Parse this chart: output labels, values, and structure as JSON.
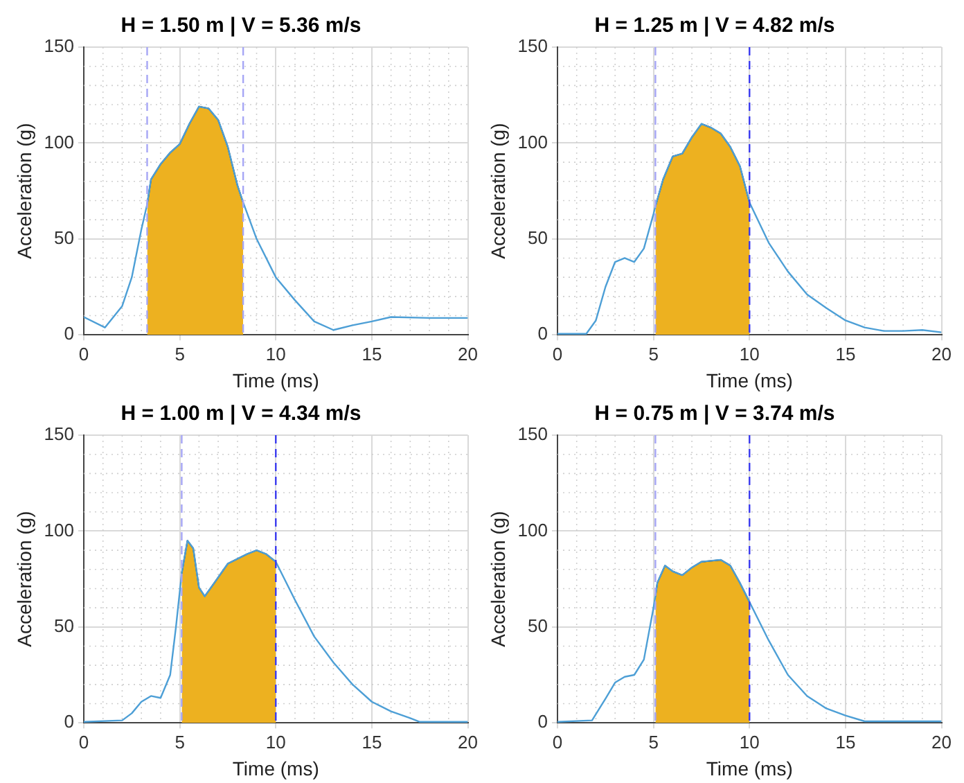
{
  "chart_data": [
    {
      "type": "line",
      "title": "H = 1.50 m | V = 5.36 m/s",
      "xlabel": "Time (ms)",
      "ylabel": "Acceleration (g)",
      "xlim": [
        0,
        20
      ],
      "xticks": [
        0,
        5,
        10,
        15,
        20
      ],
      "ylim": [
        0,
        150
      ],
      "yticks": [
        0,
        50,
        100,
        150
      ],
      "grid": true,
      "series": [
        {
          "type": "line",
          "color": "#4d9fd6",
          "x": [
            0,
            1.1,
            2,
            2.5,
            3,
            3.3,
            3.5,
            4,
            4.5,
            5,
            5.5,
            6,
            6.5,
            7,
            7.5,
            8,
            8.3,
            9,
            10,
            11,
            12,
            13,
            14,
            15,
            16,
            18,
            20
          ],
          "values": [
            9.3,
            3.8,
            15,
            30,
            55,
            68,
            81,
            89,
            95,
            99.5,
            110,
            119,
            118,
            112,
            98,
            78,
            69,
            50,
            30,
            18,
            7,
            2.5,
            5,
            7,
            9.3,
            8.8,
            8.8
          ]
        },
        {
          "type": "area",
          "color": "#edb120",
          "x": [
            3.3,
            3.5,
            4,
            4.5,
            5,
            5.5,
            6,
            6.5,
            7,
            7.5,
            8,
            8.3
          ],
          "values": [
            68,
            81,
            89,
            95,
            99.5,
            110,
            119,
            118,
            112,
            98,
            78,
            69
          ]
        }
      ],
      "ref_lines": [
        {
          "axis": "x",
          "value": 3.3,
          "color": "#a6a6f5",
          "line_style": "dashed"
        },
        {
          "axis": "x",
          "value": 8.3,
          "color": "#a6a6f5",
          "line_style": "dashed"
        }
      ]
    },
    {
      "type": "line",
      "title": "H = 1.25 m | V = 4.82 m/s",
      "xlabel": "Time (ms)",
      "ylabel": "Acceleration (g)",
      "xlim": [
        0,
        20
      ],
      "xticks": [
        0,
        5,
        10,
        15,
        20
      ],
      "ylim": [
        0,
        150
      ],
      "yticks": [
        0,
        50,
        100,
        150
      ],
      "grid": true,
      "series": [
        {
          "type": "line",
          "color": "#4d9fd6",
          "x": [
            0,
            1.5,
            2,
            2.5,
            3,
            3.5,
            4,
            4.5,
            5,
            5.1,
            5.5,
            6,
            6.5,
            7,
            7.5,
            8,
            8.5,
            9,
            9.5,
            10,
            11,
            12,
            13,
            14,
            15,
            16,
            17,
            18,
            19,
            20
          ],
          "values": [
            0.5,
            0.5,
            7.5,
            25,
            38,
            40,
            38,
            45,
            63,
            67,
            81,
            93,
            94.5,
            103,
            110,
            108,
            105,
            98,
            88,
            69,
            48,
            33,
            21,
            14,
            7.5,
            3.8,
            2,
            2,
            2.5,
            1.3
          ]
        },
        {
          "type": "area",
          "color": "#edb120",
          "x": [
            5.1,
            5.5,
            6,
            6.5,
            7,
            7.5,
            8,
            8.5,
            9,
            9.5,
            10
          ],
          "values": [
            67,
            81,
            93,
            94.5,
            103,
            110,
            108,
            105,
            98,
            88,
            69
          ]
        }
      ],
      "ref_lines": [
        {
          "axis": "x",
          "value": 5.1,
          "color": "#a6a6f5",
          "line_style": "dashed"
        },
        {
          "axis": "x",
          "value": 10,
          "color": "#3a3af0",
          "line_style": "dashed"
        }
      ]
    },
    {
      "type": "line",
      "title": "H = 1.00 m | V = 4.34 m/s",
      "xlabel": "Time (ms)",
      "ylabel": "Acceleration (g)",
      "xlim": [
        0,
        20
      ],
      "xticks": [
        0,
        5,
        10,
        15,
        20
      ],
      "ylim": [
        0,
        150
      ],
      "yticks": [
        0,
        50,
        100,
        150
      ],
      "grid": true,
      "series": [
        {
          "type": "line",
          "color": "#4d9fd6",
          "x": [
            0,
            2,
            2.5,
            3,
            3.5,
            4,
            4.5,
            4.8,
            5.1,
            5.4,
            5.7,
            6,
            6.3,
            6.8,
            7.5,
            8.5,
            9,
            9.5,
            10,
            11,
            12,
            13,
            14,
            15,
            16,
            17,
            17.5,
            20
          ],
          "values": [
            0.5,
            1.3,
            5,
            11,
            14,
            13,
            25,
            50,
            78,
            95,
            91,
            70.5,
            66,
            73,
            83,
            88,
            90,
            88,
            84,
            64,
            45,
            31.5,
            20,
            11,
            6,
            2.5,
            0.5,
            0.5
          ]
        },
        {
          "type": "area",
          "color": "#edb120",
          "x": [
            5.1,
            5.4,
            5.7,
            6,
            6.3,
            6.8,
            7.5,
            8.5,
            9,
            9.5,
            10
          ],
          "values": [
            78,
            95,
            91,
            70.5,
            66,
            73,
            83,
            88,
            90,
            88,
            84
          ]
        }
      ],
      "ref_lines": [
        {
          "axis": "x",
          "value": 5.1,
          "color": "#a6a6f5",
          "line_style": "dashed"
        },
        {
          "axis": "x",
          "value": 10,
          "color": "#3a3af0",
          "line_style": "dashed"
        }
      ]
    },
    {
      "type": "line",
      "title": "H = 0.75 m | V = 3.74 m/s",
      "xlabel": "Time (ms)",
      "ylabel": "Acceleration (g)",
      "xlim": [
        0,
        20
      ],
      "xticks": [
        0,
        5,
        10,
        15,
        20
      ],
      "ylim": [
        0,
        150
      ],
      "yticks": [
        0,
        50,
        100,
        150
      ],
      "grid": true,
      "series": [
        {
          "type": "line",
          "color": "#4d9fd6",
          "x": [
            0,
            1.8,
            2.5,
            3,
            3.5,
            4,
            4.5,
            5,
            5.1,
            5.2,
            5.6,
            6,
            6.5,
            7,
            7.5,
            8.5,
            9,
            9.5,
            10,
            11,
            12,
            13,
            14,
            15,
            16,
            20
          ],
          "values": [
            0.5,
            1.3,
            12.6,
            21,
            24,
            25,
            33,
            60,
            66,
            73,
            82,
            79,
            77,
            81,
            84,
            85,
            82,
            73,
            63,
            43,
            25,
            14,
            7.5,
            3.8,
            0.8,
            0.8
          ]
        },
        {
          "type": "area",
          "color": "#edb120",
          "x": [
            5.1,
            5.2,
            5.6,
            6,
            6.5,
            7,
            7.5,
            8.5,
            9,
            9.5,
            10
          ],
          "values": [
            66,
            73,
            82,
            79,
            77,
            81,
            84,
            85,
            82,
            73,
            63
          ]
        }
      ],
      "ref_lines": [
        {
          "axis": "x",
          "value": 5.1,
          "color": "#a6a6f5",
          "line_style": "dashed"
        },
        {
          "axis": "x",
          "value": 10,
          "color": "#3a3af0",
          "line_style": "dashed"
        }
      ]
    }
  ]
}
